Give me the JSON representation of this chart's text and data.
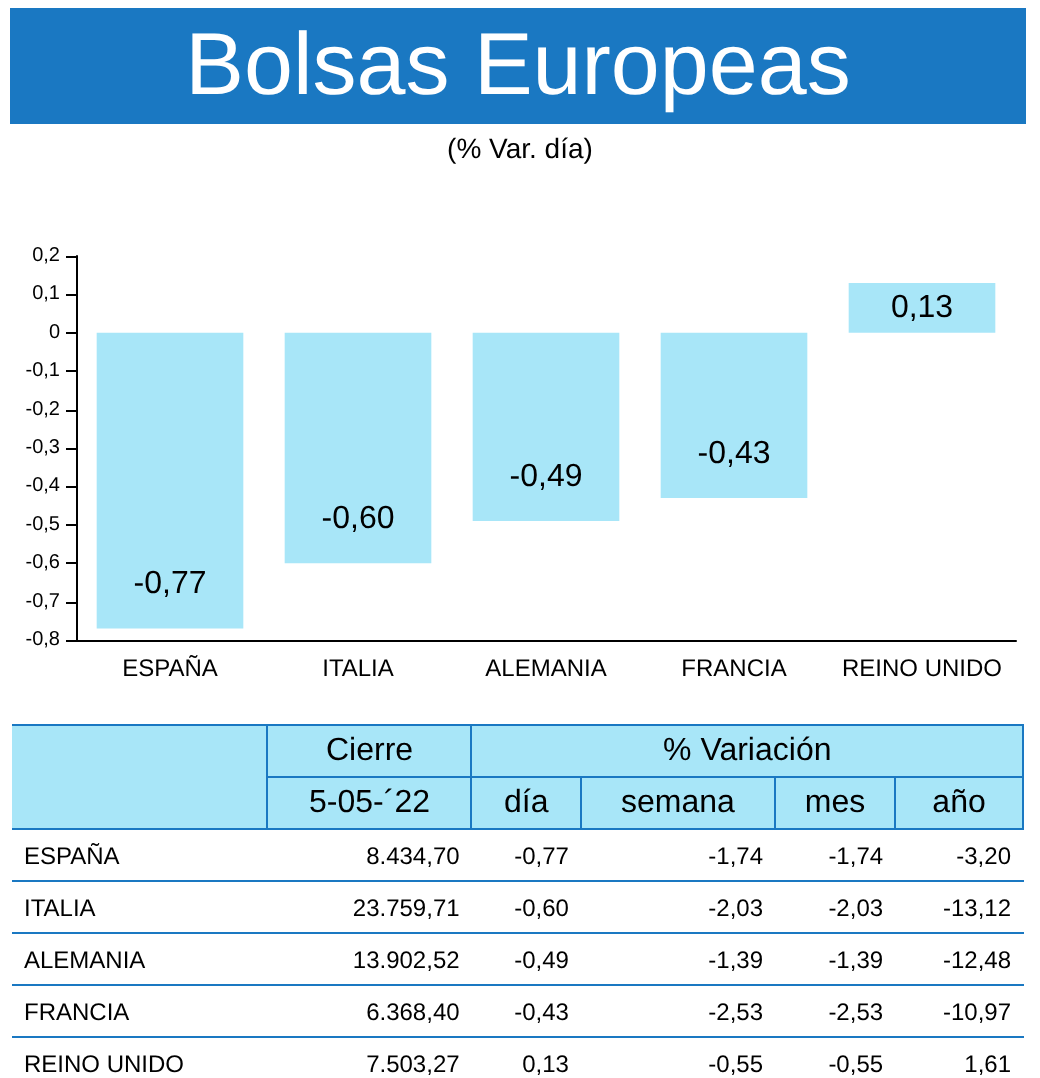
{
  "chart_data": [
    {
      "type": "bar",
      "title": "Bolsas Europeas",
      "subtitle": "(% Var. día)",
      "categories": [
        "ESPAÑA",
        "ITALIA",
        "ALEMANIA",
        "FRANCIA",
        "REINO UNIDO"
      ],
      "values": [
        -0.77,
        -0.6,
        -0.49,
        -0.43,
        0.13
      ],
      "value_labels": [
        "-0,77",
        "-0,60",
        "-0,49",
        "-0,43",
        "0,13"
      ],
      "color": "#a8e6f8",
      "ylim": [
        -0.8,
        0.2
      ],
      "yticks": [
        {
          "value": -0.8,
          "label": "-0,8"
        },
        {
          "value": -0.7,
          "label": "-0,7"
        },
        {
          "value": -0.6,
          "label": "-0,6"
        },
        {
          "value": -0.5,
          "label": "-0,5"
        },
        {
          "value": -0.4,
          "label": "-0,4"
        },
        {
          "value": -0.3,
          "label": "-0,3"
        },
        {
          "value": -0.2,
          "label": "-0,2"
        },
        {
          "value": -0.1,
          "label": "-0,1"
        },
        0,
        {
          "value": 0.1,
          "label": "0,1"
        },
        {
          "value": 0.2,
          "label": "0,2"
        }
      ],
      "grid": false
    },
    {
      "type": "other",
      "categories": [
        "ESPAÑA",
        "ITALIA",
        "ALEMANIA",
        "FRANCIA",
        "REINO UNIDO"
      ],
      "annotations": [
        "Cierre",
        "% Variación",
        "5-05-´22",
        "día",
        "semana",
        "mes",
        "año",
        "8.434,70",
        "-0,77",
        "-1,74",
        "-1,74",
        "-3,20",
        "23.759,71",
        "-0,60",
        "-2,03",
        "-2,03",
        "-13,12",
        "13.902,52",
        "-0,49",
        "-1,39",
        "-1,39",
        "-12,48",
        "6.368,40",
        "-0,43",
        "-2,53",
        "-2,53",
        "-10,97",
        "7.503,27",
        "0,13",
        "-0,55",
        "-0,55",
        "1,61"
      ]
    }
  ]
}
